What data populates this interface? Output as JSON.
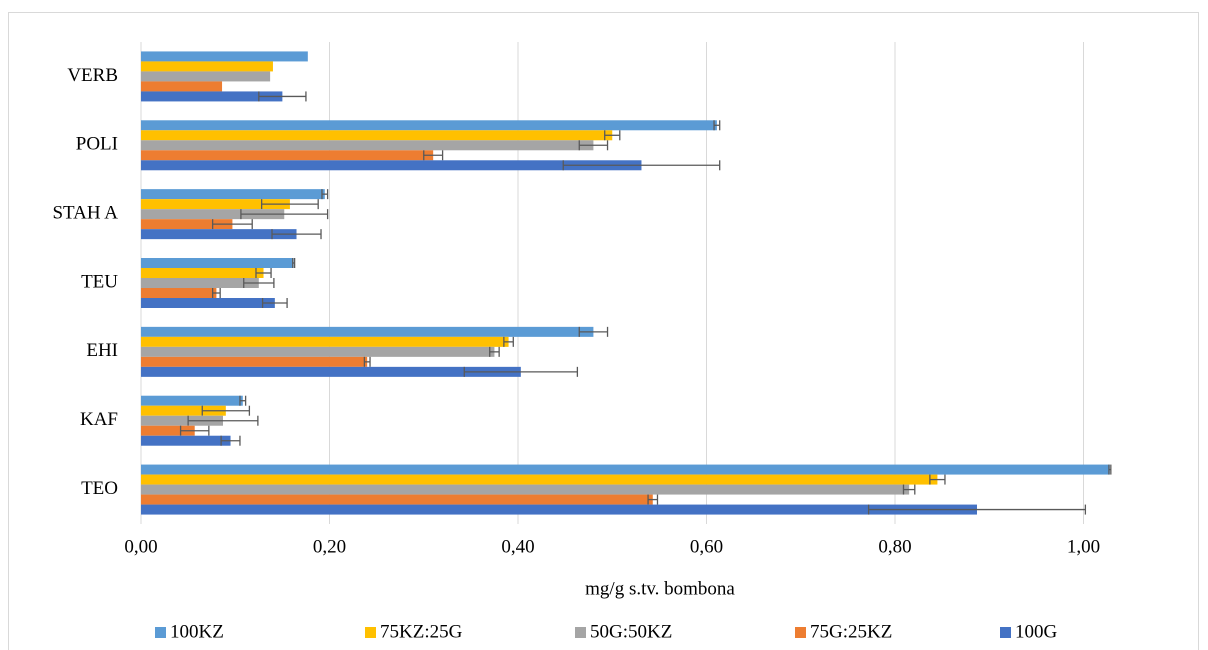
{
  "chart_data": {
    "type": "bar",
    "orientation": "horizontal",
    "x_label": "mg/g s.tv. bombona",
    "categories": [
      "VERB",
      "POLI",
      "STAH A",
      "TEU",
      "EHI",
      "KAF",
      "TEO"
    ],
    "series": [
      {
        "name": "100KZ",
        "color": "#5b9bd5",
        "values": [
          0.177,
          0.611,
          0.195,
          0.162,
          0.48,
          0.108,
          1.028
        ],
        "errors": [
          null,
          0.003,
          0.003,
          0.001,
          0.015,
          0.003,
          0.001
        ]
      },
      {
        "name": "75KZ:25G",
        "color": "#ffc000",
        "values": [
          0.14,
          0.5,
          0.158,
          0.13,
          0.39,
          0.09,
          0.845
        ],
        "errors": [
          null,
          0.008,
          0.03,
          0.008,
          0.005,
          0.025,
          0.008
        ]
      },
      {
        "name": "50G:50KZ",
        "color": "#a5a5a5",
        "values": [
          0.137,
          0.48,
          0.152,
          0.125,
          0.375,
          0.087,
          0.815
        ],
        "errors": [
          null,
          0.015,
          0.046,
          0.016,
          0.005,
          0.037,
          0.006
        ]
      },
      {
        "name": "75G:25KZ",
        "color": "#ed7d31",
        "values": [
          0.086,
          0.31,
          0.097,
          0.08,
          0.24,
          0.057,
          0.543
        ],
        "errors": [
          null,
          0.01,
          0.021,
          0.004,
          0.003,
          0.015,
          0.005
        ]
      },
      {
        "name": "100G",
        "color": "#4472c4",
        "values": [
          0.15,
          0.531,
          0.165,
          0.142,
          0.403,
          0.095,
          0.887
        ],
        "errors": [
          0.025,
          0.083,
          0.026,
          0.013,
          0.06,
          0.01,
          0.115
        ]
      }
    ],
    "xlim": [
      0,
      1.1
    ],
    "xticks": [
      {
        "value": 0,
        "label": "0,00"
      },
      {
        "value": 0.2,
        "label": "0,20"
      },
      {
        "value": 0.4,
        "label": "0,40"
      },
      {
        "value": 0.6,
        "label": "0,60"
      },
      {
        "value": 0.8,
        "label": "0,80"
      },
      {
        "value": 1.0,
        "label": "1,00"
      }
    ],
    "grid": true,
    "legend": "bottom"
  }
}
